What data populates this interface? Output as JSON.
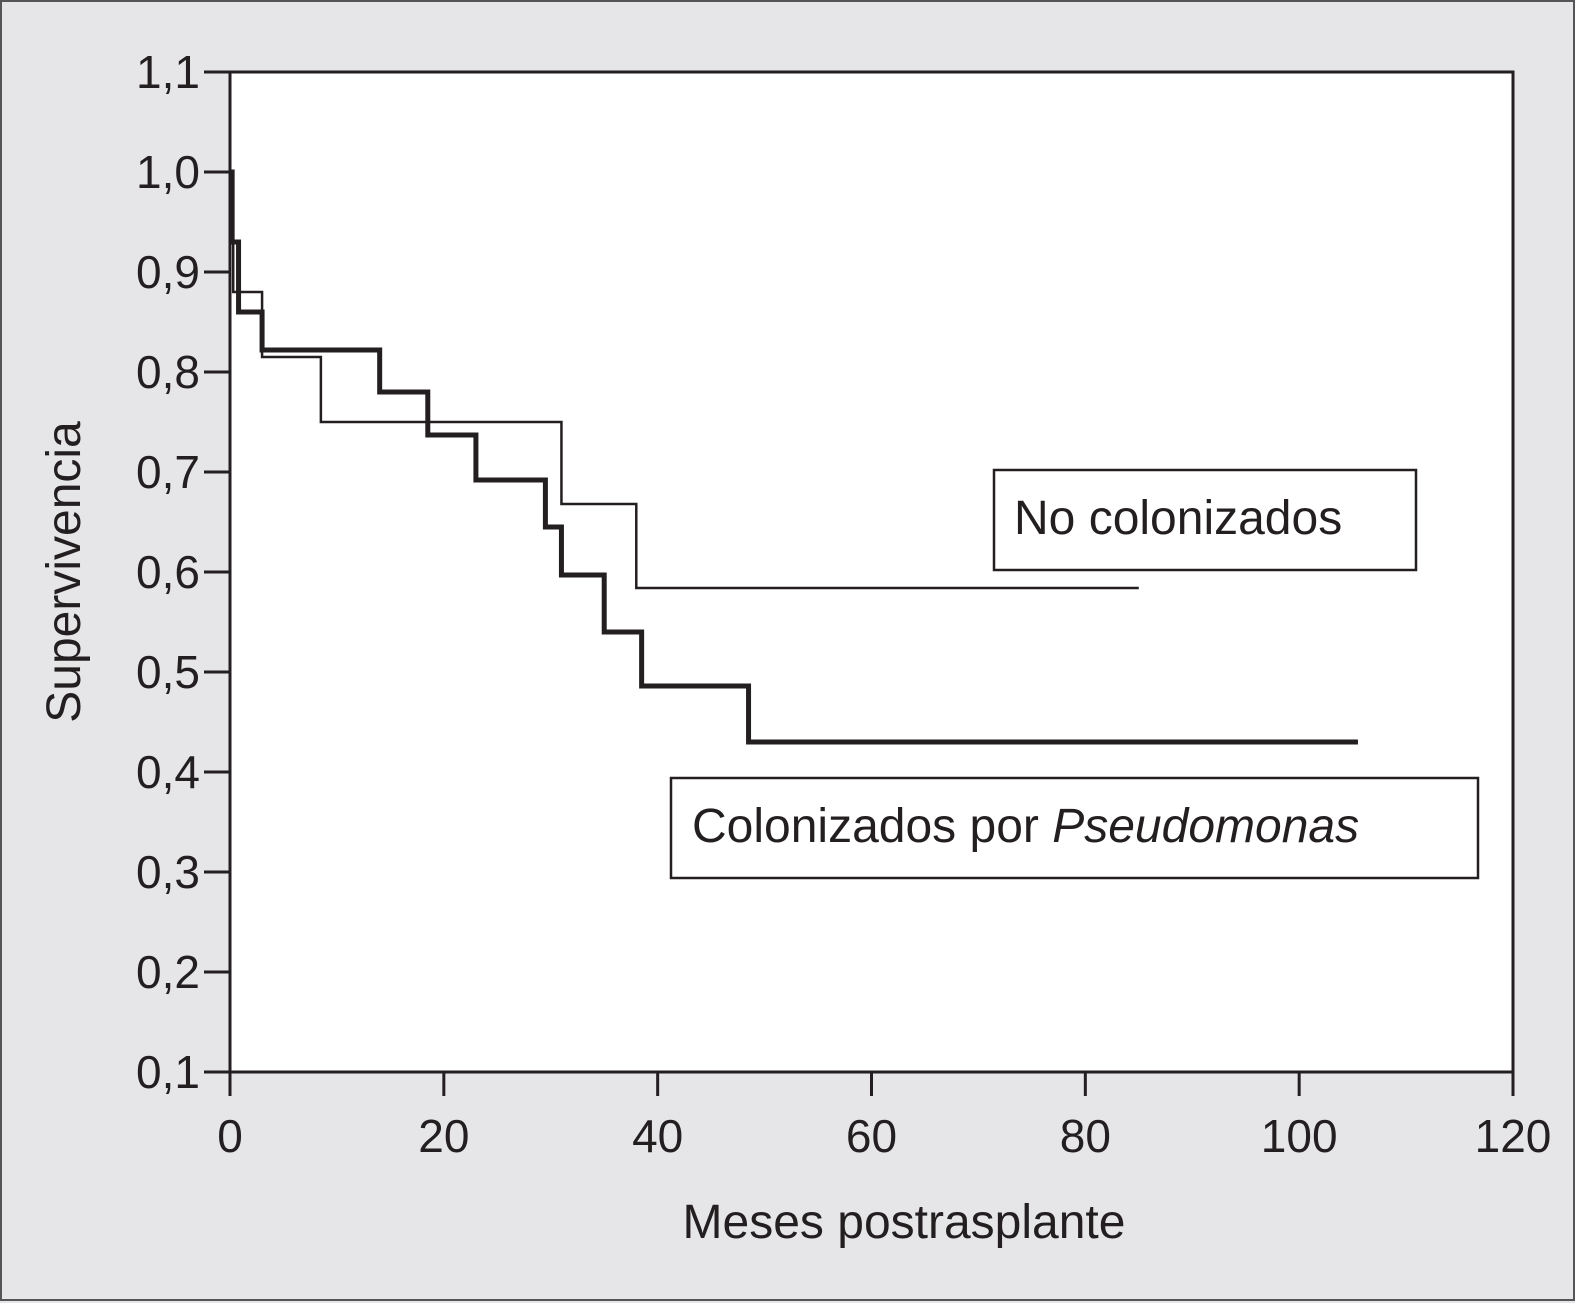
{
  "chart_data": {
    "type": "line",
    "step": true,
    "xlabel": "Meses postrasplante",
    "ylabel": "Supervivencia",
    "xlim": [
      0,
      120
    ],
    "ylim": [
      0.1,
      1.1
    ],
    "x_ticks": [
      "0",
      "20",
      "40",
      "60",
      "80",
      "100",
      "120"
    ],
    "y_ticks": [
      "0,1",
      "0,2",
      "0,3",
      "0,4",
      "0,5",
      "0,6",
      "0,7",
      "0,8",
      "0,9",
      "1,0",
      "1,1"
    ],
    "grid": false,
    "series": [
      {
        "name": "No colonizados",
        "line_weight": "thin",
        "points": [
          [
            0,
            1.0
          ],
          [
            0.3,
            0.88
          ],
          [
            3,
            0.815
          ],
          [
            8.5,
            0.75
          ],
          [
            31,
            0.668
          ],
          [
            38,
            0.584
          ],
          [
            85,
            0.584
          ]
        ]
      },
      {
        "name": "Colonizados por Pseudomonas",
        "name_plain": "Colonizados por ",
        "name_italic": "Pseudomonas",
        "line_weight": "thick",
        "points": [
          [
            0,
            1.0
          ],
          [
            0.2,
            0.93
          ],
          [
            0.6,
            0.93
          ],
          [
            0.8,
            0.86
          ],
          [
            3,
            0.822
          ],
          [
            14,
            0.78
          ],
          [
            18.5,
            0.737
          ],
          [
            23,
            0.692
          ],
          [
            29.5,
            0.645
          ],
          [
            31,
            0.597
          ],
          [
            35,
            0.54
          ],
          [
            38.5,
            0.486
          ],
          [
            48.5,
            0.43
          ],
          [
            105.5,
            0.43
          ]
        ]
      }
    ],
    "colors": {
      "line": "#231f20",
      "plot_background": "#ffffff",
      "page_background": "#e6e6e8"
    }
  }
}
